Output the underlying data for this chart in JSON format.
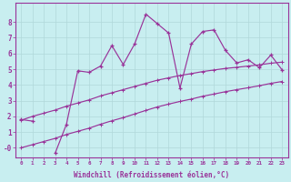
{
  "title": "",
  "xlabel": "Windchill (Refroidissement éolien,°C)",
  "x_values": [
    0,
    1,
    2,
    3,
    4,
    5,
    6,
    7,
    8,
    9,
    10,
    11,
    12,
    13,
    14,
    15,
    16,
    17,
    18,
    19,
    20,
    21,
    22,
    23
  ],
  "y_main": [
    1.8,
    1.7,
    null,
    -0.35,
    1.5,
    4.9,
    4.8,
    5.2,
    6.5,
    5.3,
    6.6,
    8.5,
    7.9,
    7.3,
    3.8,
    6.6,
    7.4,
    7.5,
    6.2,
    5.4,
    5.6,
    5.1,
    5.9,
    4.95
  ],
  "y_upper": [
    1.75,
    2.0,
    2.2,
    2.4,
    2.65,
    2.85,
    3.05,
    3.3,
    3.5,
    3.7,
    3.9,
    4.1,
    4.3,
    4.45,
    4.6,
    4.72,
    4.85,
    4.95,
    5.05,
    5.12,
    5.2,
    5.28,
    5.38,
    5.45
  ],
  "y_lower": [
    0.0,
    0.2,
    0.4,
    0.6,
    0.85,
    1.05,
    1.25,
    1.5,
    1.72,
    1.92,
    2.15,
    2.38,
    2.6,
    2.78,
    2.95,
    3.1,
    3.28,
    3.42,
    3.57,
    3.7,
    3.82,
    3.95,
    4.1,
    4.22
  ],
  "line_color": "#993399",
  "bg_color": "#c8eef0",
  "grid_color": "#b0d8da",
  "ylim": [
    -0.6,
    9.2
  ],
  "xlim_min": -0.5,
  "xlim_max": 23.5,
  "yticks": [
    0,
    1,
    2,
    3,
    4,
    5,
    6,
    7,
    8
  ],
  "ytick_labels": [
    "-0",
    "1",
    "2",
    "3",
    "4",
    "5",
    "6",
    "7",
    "8"
  ],
  "xticks": [
    0,
    1,
    2,
    3,
    4,
    5,
    6,
    7,
    8,
    9,
    10,
    11,
    12,
    13,
    14,
    15,
    16,
    17,
    18,
    19,
    20,
    21,
    22,
    23
  ]
}
